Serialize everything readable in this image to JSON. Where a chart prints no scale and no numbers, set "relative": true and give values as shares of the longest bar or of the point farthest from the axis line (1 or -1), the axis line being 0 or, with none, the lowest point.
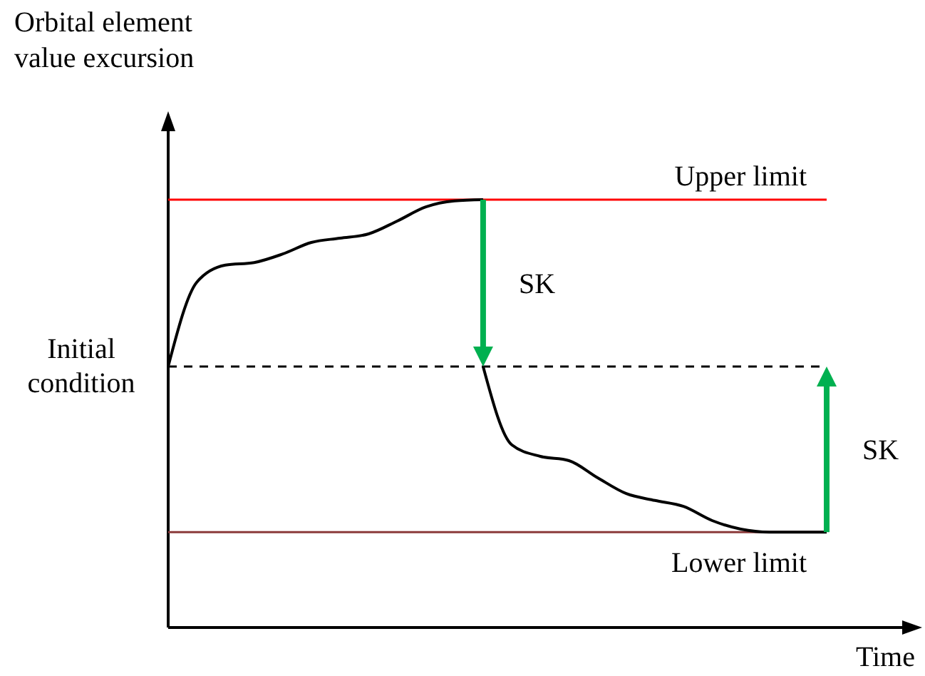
{
  "chart_data": {
    "type": "line",
    "relative": true,
    "ylabel": "Orbital element value excursion",
    "xlabel": "Time",
    "marker": "none",
    "line_style": "solid",
    "categories": [
      null,
      null,
      null,
      null,
      null,
      null,
      null,
      null,
      null,
      null,
      null,
      null,
      null,
      null,
      null,
      null,
      null,
      null,
      null,
      null,
      null,
      null,
      null,
      null
    ],
    "series": [
      {
        "color": "#000000",
        "values": [
          0.61,
          0.807,
          0.847,
          0.853,
          0.873,
          0.9,
          0.91,
          0.92,
          0.95,
          0.983,
          0.997,
          1,
          null,
          null,
          null,
          null,
          null,
          null,
          null,
          null,
          null,
          null,
          null,
          null
        ]
      },
      {
        "color": "#000000",
        "values": [
          null,
          null,
          null,
          null,
          null,
          null,
          null,
          null,
          null,
          null,
          null,
          0.61,
          0.427,
          0.4,
          0.39,
          0.35,
          0.313,
          0.297,
          0.283,
          0.25,
          0.23,
          0.223,
          0.223,
          0.223
        ]
      }
    ],
    "ref_lines": [
      {
        "axis": "y",
        "value": 1,
        "label": "Upper limit",
        "color": "#ff0000",
        "line_style": "solid"
      },
      {
        "axis": "y",
        "value": 0.61,
        "label": "Initial condition",
        "color": "#000000",
        "line_style": "dashed"
      },
      {
        "axis": "y",
        "value": 0.223,
        "label": "Lower limit",
        "color": "#8b3a3a",
        "line_style": "solid"
      }
    ],
    "annotations": [
      "SK",
      "SK"
    ]
  }
}
